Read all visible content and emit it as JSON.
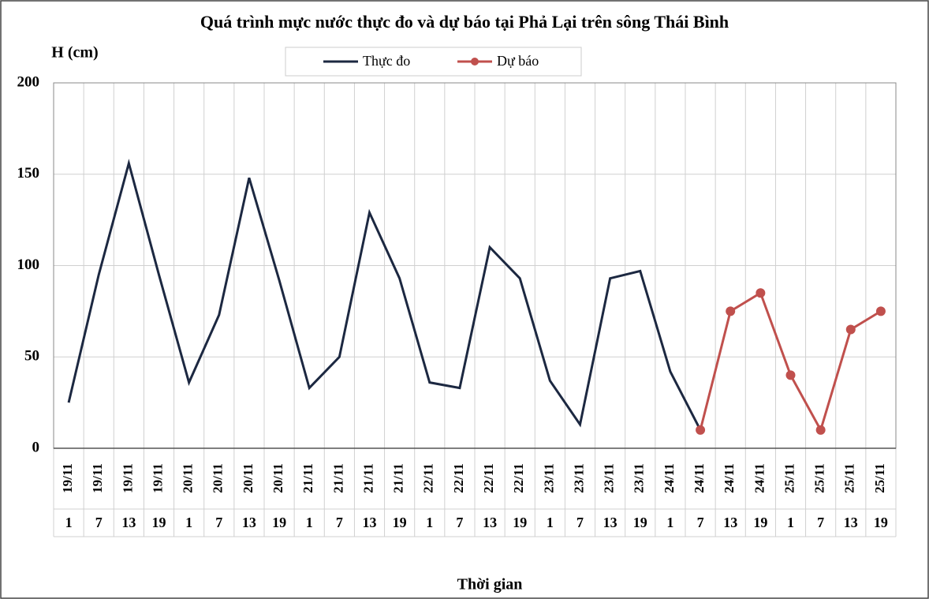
{
  "chart_data": {
    "type": "line",
    "title": "Quá trình mực nước thực đo và dự báo tại Phả Lại trên sông Thái Bình",
    "y_label": "H (cm)",
    "x_label": "Thời gian",
    "categories": [
      [
        "19/11",
        "1"
      ],
      [
        "19/11",
        "7"
      ],
      [
        "19/11",
        "13"
      ],
      [
        "19/11",
        "19"
      ],
      [
        "20/11",
        "1"
      ],
      [
        "20/11",
        "7"
      ],
      [
        "20/11",
        "13"
      ],
      [
        "20/11",
        "19"
      ],
      [
        "21/11",
        "1"
      ],
      [
        "21/11",
        "7"
      ],
      [
        "21/11",
        "13"
      ],
      [
        "21/11",
        "19"
      ],
      [
        "22/11",
        "1"
      ],
      [
        "22/11",
        "7"
      ],
      [
        "22/11",
        "13"
      ],
      [
        "22/11",
        "19"
      ],
      [
        "23/11",
        "1"
      ],
      [
        "23/11",
        "7"
      ],
      [
        "23/11",
        "13"
      ],
      [
        "23/11",
        "19"
      ],
      [
        "24/11",
        "1"
      ],
      [
        "24/11",
        "7"
      ],
      [
        "24/11",
        "13"
      ],
      [
        "24/11",
        "19"
      ],
      [
        "25/11",
        "1"
      ],
      [
        "25/11",
        "7"
      ],
      [
        "25/11",
        "13"
      ],
      [
        "25/11",
        "19"
      ]
    ],
    "series": [
      {
        "name": "Thực đo",
        "color": "#1c2841",
        "markers": false,
        "values": [
          25,
          95,
          156,
          95,
          36,
          73,
          148,
          92,
          33,
          50,
          129,
          93,
          36,
          33,
          110,
          93,
          37,
          13,
          93,
          97,
          42,
          10,
          null,
          null,
          null,
          null,
          null,
          null
        ]
      },
      {
        "name": "Dự báo",
        "color": "#c0504d",
        "markers": true,
        "values": [
          null,
          null,
          null,
          null,
          null,
          null,
          null,
          null,
          null,
          null,
          null,
          null,
          null,
          null,
          null,
          null,
          null,
          null,
          null,
          null,
          null,
          10,
          75,
          85,
          40,
          10,
          65,
          75
        ]
      }
    ],
    "ylim": [
      0,
      200
    ],
    "yticks": [
      0,
      50,
      100,
      150,
      200
    ],
    "grid": true
  }
}
